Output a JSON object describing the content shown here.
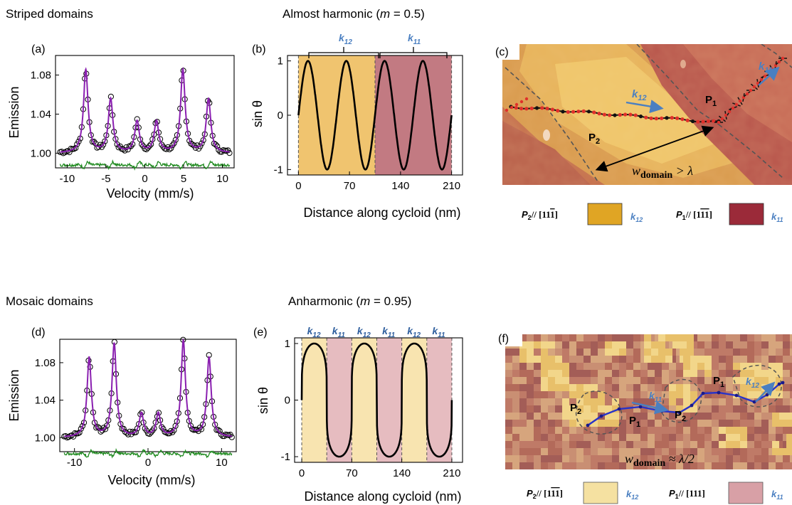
{
  "row1": {
    "heading": "Striped domains",
    "middle_title": "Almost harmonic (",
    "middle_title_m": "m",
    "middle_title_value": " = 0.5)",
    "panel_a": {
      "label": "(a)",
      "ylabel": "Emission",
      "xlabel": "Velocity (mm/s)",
      "xticks": [
        "-10",
        "-5",
        "0",
        "5",
        "10"
      ],
      "yticks": [
        "1.00",
        "1.04",
        "1.08"
      ]
    },
    "panel_b": {
      "label": "(b)",
      "ylabel": "sin θ",
      "xlabel": "Distance along cycloid (nm)",
      "xticks": [
        "0",
        "70",
        "140",
        "210"
      ],
      "yticks": [
        "-1",
        "0",
        "1"
      ],
      "brackets": [
        {
          "k": "k",
          "sub": "12"
        },
        {
          "k": "k",
          "sub": "11"
        }
      ]
    },
    "panel_c": {
      "label": "(c)",
      "arrow_k12": {
        "k": "k",
        "sub": "12"
      },
      "arrow_k11": {
        "k": "k",
        "sub": "11"
      },
      "p1": {
        "p": "P",
        "sub": "1"
      },
      "p2": {
        "p": "P",
        "sub": "2"
      },
      "width_label": "w",
      "width_sub": "domain",
      "width_rel": " > λ"
    },
    "legend": [
      {
        "p": "P",
        "sub": "2",
        "dir": "// [11",
        "bar": "1",
        "end": "]",
        "k": "k",
        "ksub": "12",
        "color": "#e0a524"
      },
      {
        "p": "P",
        "sub": "1",
        "dir": "// [1",
        "bar": "11",
        "end": "]",
        "k": "k",
        "ksub": "11",
        "color": "#9b2a39"
      }
    ]
  },
  "row2": {
    "heading": "Mosaic domains",
    "middle_title": "Anharmonic (",
    "middle_title_m": "m",
    "middle_title_value": " = 0.95)",
    "panel_d": {
      "label": "(d)",
      "ylabel": "Emission",
      "xlabel": "Velocity (mm/s)",
      "xticks": [
        "-10",
        "0",
        "10"
      ],
      "yticks": [
        "1.00",
        "1.04",
        "1.08"
      ]
    },
    "panel_e": {
      "label": "(e)",
      "ylabel": "sin θ",
      "xlabel": "Distance along cycloid (nm)",
      "xticks": [
        "0",
        "70",
        "140",
        "210"
      ],
      "yticks": [
        "-1",
        "0",
        "1"
      ],
      "segments": [
        {
          "k": "k",
          "sub": "12"
        },
        {
          "k": "k",
          "sub": "11"
        },
        {
          "k": "k",
          "sub": "12"
        },
        {
          "k": "k",
          "sub": "11"
        },
        {
          "k": "k",
          "sub": "12"
        },
        {
          "k": "k",
          "sub": "11"
        }
      ]
    },
    "panel_f": {
      "label": "(f)",
      "arrow_k11": {
        "k": "k",
        "sub": "11"
      },
      "arrow_k12": {
        "k": "k",
        "sub": "12"
      },
      "p1a": {
        "p": "P",
        "sub": "1"
      },
      "p1b": {
        "p": "P",
        "sub": "1"
      },
      "p2a": {
        "p": "P",
        "sub": "2"
      },
      "p2b": {
        "p": "P",
        "sub": "2"
      },
      "width_label": "w",
      "width_sub": "domain",
      "width_rel": " ≈ λ/2"
    },
    "legend": [
      {
        "p": "P",
        "sub": "2",
        "dir": "// [1",
        "bar": "11",
        "end": "]",
        "k": "k",
        "ksub": "12",
        "color": "#f5e1a1"
      },
      {
        "p": "P",
        "sub": "1",
        "dir": "// [111]",
        "bar": "",
        "end": "",
        "k": "k",
        "ksub": "11",
        "color": "#d8a0a6"
      }
    ]
  },
  "chart_data": [
    {
      "panel": "a",
      "type": "scatter+line",
      "xlabel": "Velocity (mm/s)",
      "ylabel": "Emission",
      "xlim": [
        -11.5,
        11.5
      ],
      "ylim": [
        0.985,
        1.1
      ],
      "peaks": [
        {
          "x": -7.6,
          "height": 0.085
        },
        {
          "x": -4.4,
          "height": 0.055
        },
        {
          "x": -1.0,
          "height": 0.032
        },
        {
          "x": 1.5,
          "height": 0.032
        },
        {
          "x": 4.9,
          "height": 0.085
        },
        {
          "x": 8.2,
          "height": 0.055
        }
      ],
      "baseline": 1.0,
      "residual_offset": 0.988,
      "series": [
        {
          "name": "data",
          "marker": "open-circle"
        },
        {
          "name": "fit",
          "color": "#8a1fb0"
        },
        {
          "name": "residual",
          "color": "#1f8a1f"
        }
      ]
    },
    {
      "panel": "b",
      "type": "line",
      "xlabel": "Distance along cycloid (nm)",
      "ylabel": "sin θ",
      "xlim": [
        -15,
        225
      ],
      "ylim": [
        -1.1,
        1.1
      ],
      "m": 0.5,
      "period_nm": 52.5,
      "x_range": [
        0,
        210
      ],
      "shaded": [
        {
          "from": 0,
          "to": 105,
          "color": "#f0c46f"
        },
        {
          "from": 105,
          "to": 210,
          "color": "#c27a82"
        }
      ]
    },
    {
      "panel": "d",
      "type": "scatter+line",
      "xlabel": "Velocity (mm/s)",
      "ylabel": "Emission",
      "xlim": [
        -12,
        12
      ],
      "ylim": [
        0.985,
        1.105
      ],
      "peaks": [
        {
          "x": -8.0,
          "height": 0.085
        },
        {
          "x": -4.6,
          "height": 0.1
        },
        {
          "x": -0.9,
          "height": 0.025
        },
        {
          "x": 1.4,
          "height": 0.025
        },
        {
          "x": 4.8,
          "height": 0.103
        },
        {
          "x": 8.3,
          "height": 0.085
        }
      ],
      "baseline": 1.0,
      "residual_offset": 0.983,
      "series": [
        {
          "name": "data",
          "marker": "open-circle"
        },
        {
          "name": "fit",
          "color": "#8a1fb0"
        },
        {
          "name": "residual",
          "color": "#1f8a1f"
        }
      ]
    },
    {
      "panel": "e",
      "type": "line",
      "xlabel": "Distance along cycloid (nm)",
      "ylabel": "sin θ",
      "xlim": [
        -10,
        225
      ],
      "ylim": [
        -1.1,
        1.1
      ],
      "m": 0.95,
      "period_nm": 70,
      "x_range": [
        0,
        210
      ],
      "shaded_boundaries_nm": [
        0,
        35,
        70,
        105,
        140,
        175,
        210
      ],
      "shaded_colors": [
        "#f8e4b0",
        "#e6bcc0"
      ]
    }
  ]
}
